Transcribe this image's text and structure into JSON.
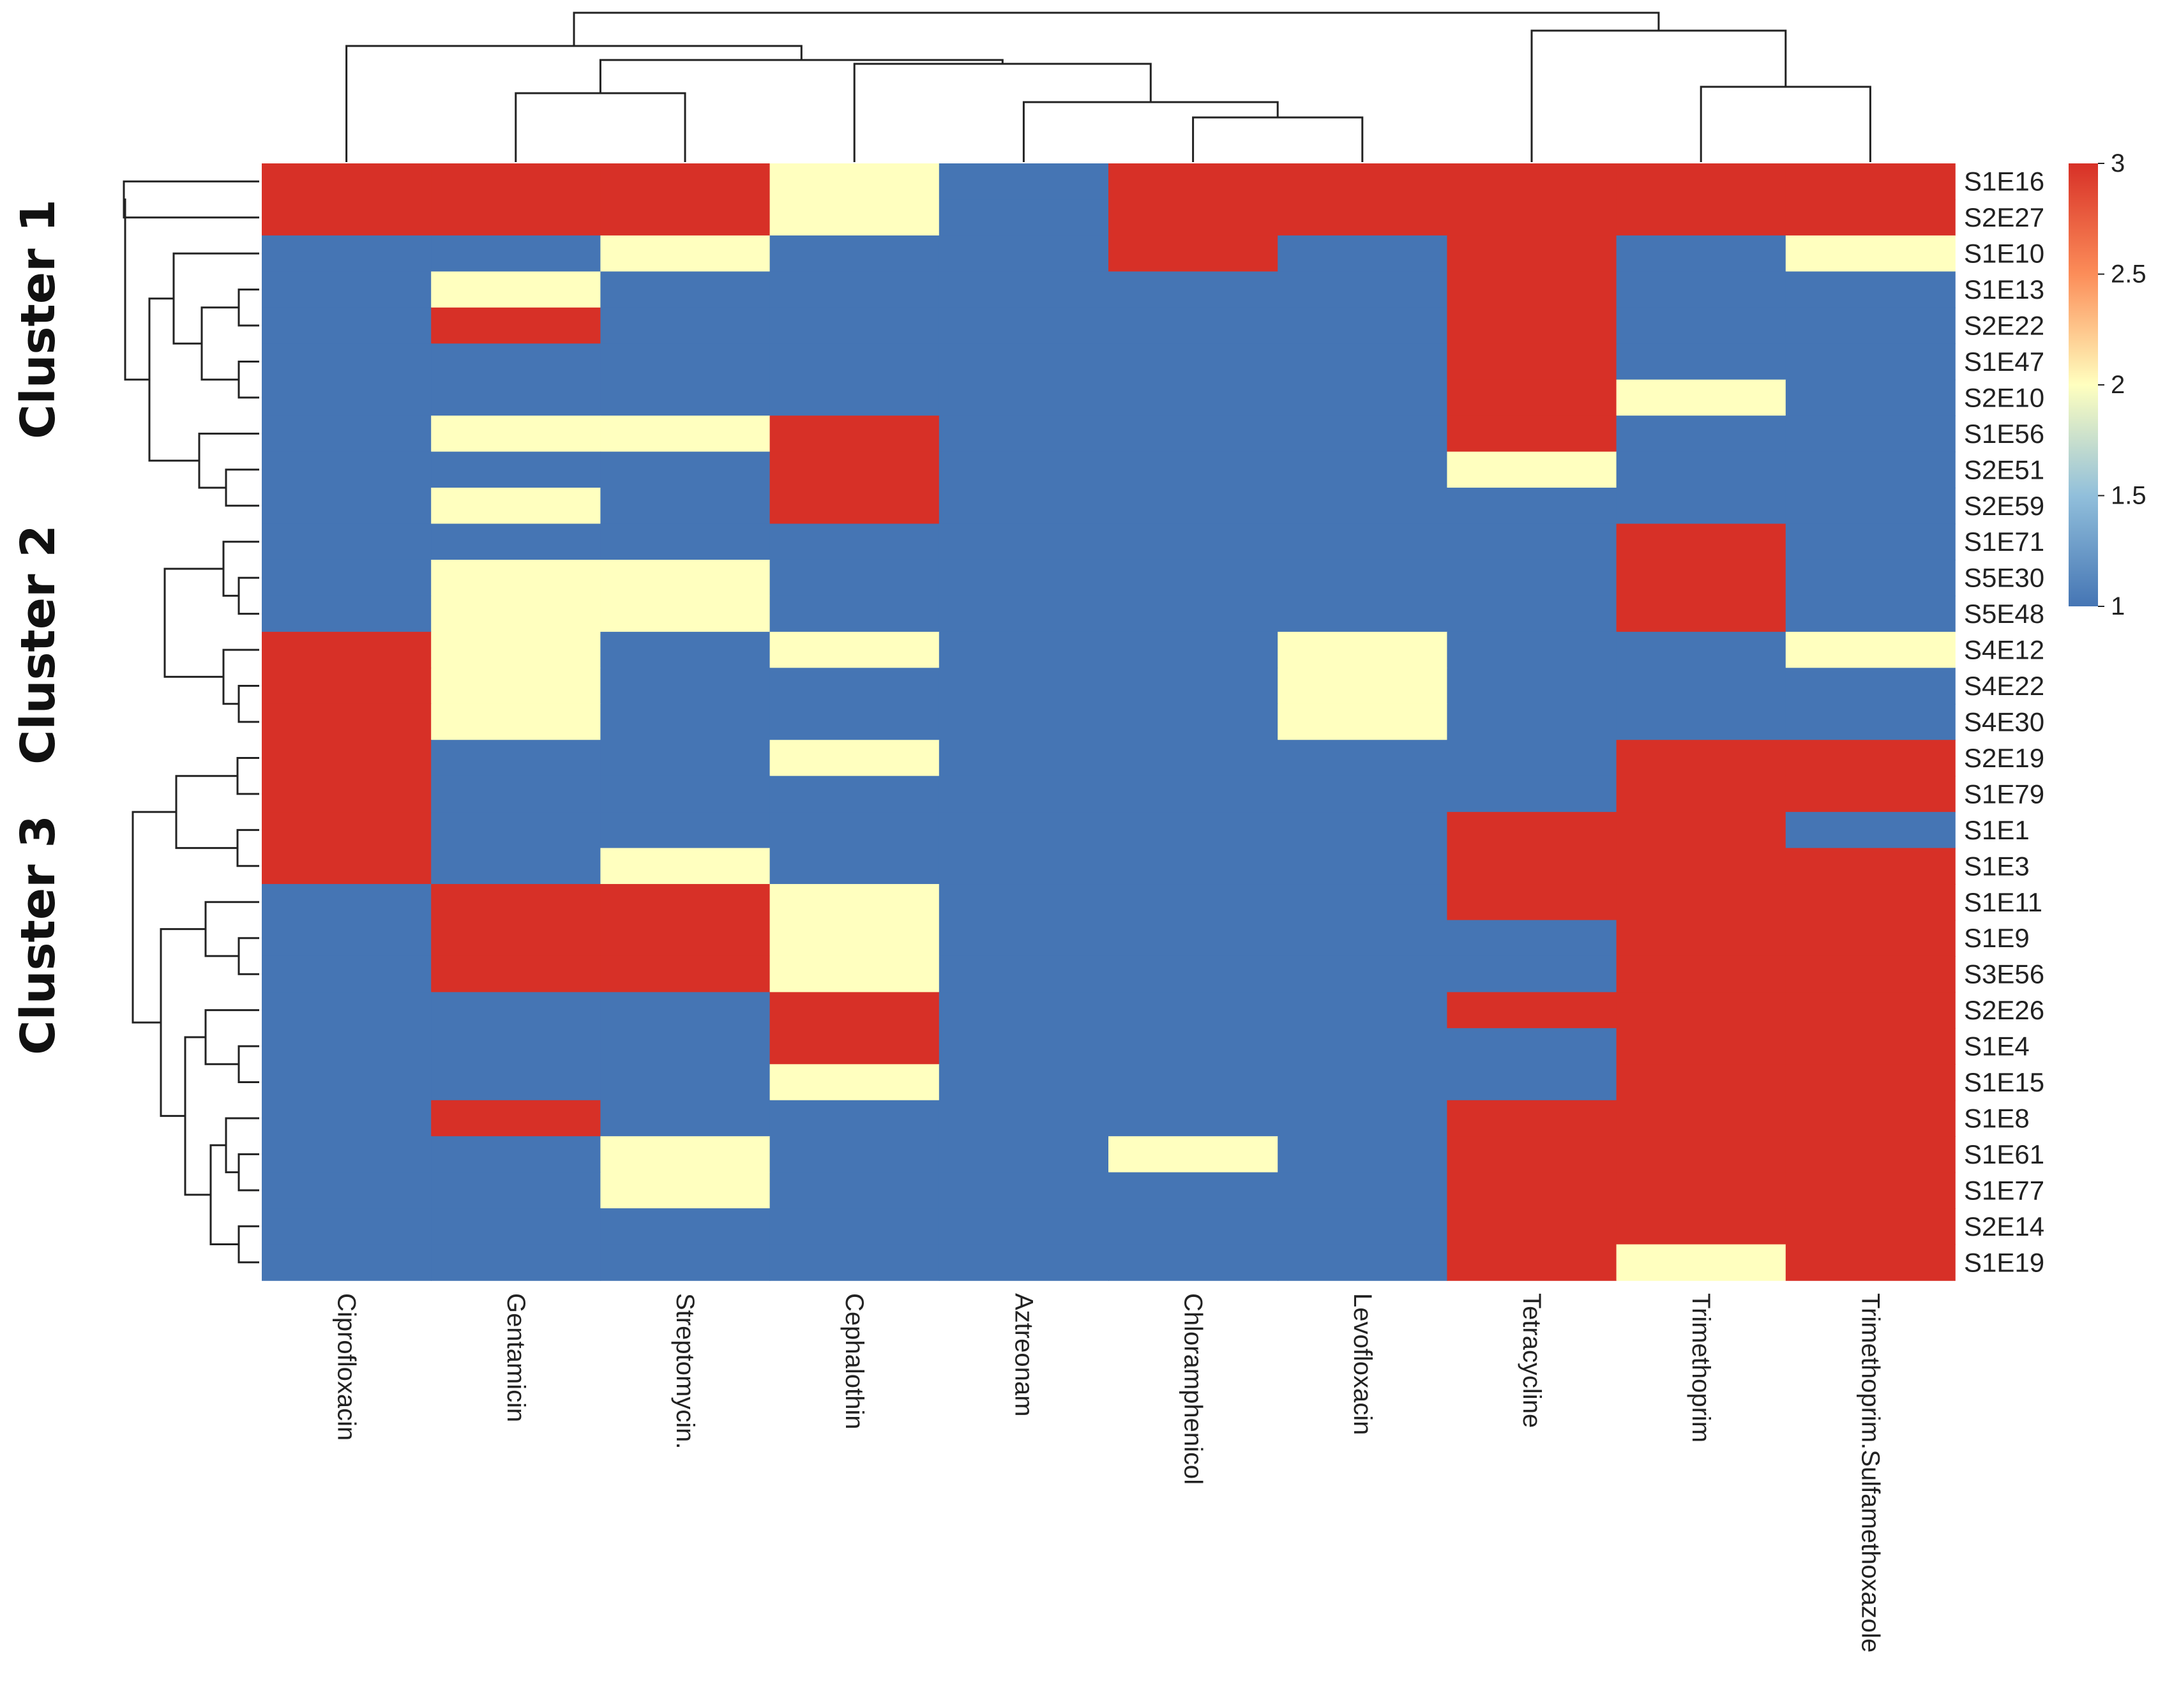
{
  "chart_data": {
    "type": "heatmap",
    "title": "",
    "columns": [
      "Ciprofloxacin",
      "Gentamicin",
      "Streptomycin.",
      "Cephalothin",
      "Aztreonam",
      "Chloramphenicol",
      "Levofloxacin",
      "Tetracycline",
      "Trimethoprim",
      "Trimethoprim.Sulfamethoxazole"
    ],
    "rows": [
      "S1E16",
      "S2E27",
      "S1E10",
      "S1E13",
      "S2E22",
      "S1E47",
      "S2E10",
      "S1E56",
      "S2E51",
      "S2E59",
      "S1E71",
      "S5E30",
      "S5E48",
      "S4E12",
      "S4E22",
      "S4E30",
      "S2E19",
      "S1E79",
      "S1E1",
      "S1E3",
      "S1E11",
      "S1E9",
      "S3E56",
      "S2E26",
      "S1E4",
      "S1E15",
      "S1E8",
      "S1E61",
      "S1E77",
      "S2E14",
      "S1E19"
    ],
    "values": [
      [
        3,
        3,
        3,
        2,
        1,
        3,
        3,
        3,
        3,
        3
      ],
      [
        3,
        3,
        3,
        2,
        1,
        3,
        3,
        3,
        3,
        3
      ],
      [
        1,
        1,
        2,
        1,
        1,
        3,
        1,
        3,
        1,
        2
      ],
      [
        1,
        2,
        1,
        1,
        1,
        1,
        1,
        3,
        1,
        1
      ],
      [
        1,
        3,
        1,
        1,
        1,
        1,
        1,
        3,
        1,
        1
      ],
      [
        1,
        1,
        1,
        1,
        1,
        1,
        1,
        3,
        1,
        1
      ],
      [
        1,
        1,
        1,
        1,
        1,
        1,
        1,
        3,
        2,
        1
      ],
      [
        1,
        2,
        2,
        3,
        1,
        1,
        1,
        3,
        1,
        1
      ],
      [
        1,
        1,
        1,
        3,
        1,
        1,
        1,
        2,
        1,
        1
      ],
      [
        1,
        2,
        1,
        3,
        1,
        1,
        1,
        1,
        1,
        1
      ],
      [
        1,
        1,
        1,
        1,
        1,
        1,
        1,
        1,
        3,
        1
      ],
      [
        1,
        2,
        2,
        1,
        1,
        1,
        1,
        1,
        3,
        1
      ],
      [
        1,
        2,
        2,
        1,
        1,
        1,
        1,
        1,
        3,
        1
      ],
      [
        3,
        2,
        1,
        2,
        1,
        1,
        2,
        1,
        1,
        2
      ],
      [
        3,
        2,
        1,
        1,
        1,
        1,
        2,
        1,
        1,
        1
      ],
      [
        3,
        2,
        1,
        1,
        1,
        1,
        2,
        1,
        1,
        1
      ],
      [
        3,
        1,
        1,
        2,
        1,
        1,
        1,
        1,
        3,
        3
      ],
      [
        3,
        1,
        1,
        1,
        1,
        1,
        1,
        1,
        3,
        3
      ],
      [
        3,
        1,
        1,
        1,
        1,
        1,
        1,
        3,
        3,
        1
      ],
      [
        3,
        1,
        2,
        1,
        1,
        1,
        1,
        3,
        3,
        3
      ],
      [
        1,
        3,
        3,
        2,
        1,
        1,
        1,
        3,
        3,
        3
      ],
      [
        1,
        3,
        3,
        2,
        1,
        1,
        1,
        1,
        3,
        3
      ],
      [
        1,
        3,
        3,
        2,
        1,
        1,
        1,
        1,
        3,
        3
      ],
      [
        1,
        1,
        1,
        3,
        1,
        1,
        1,
        3,
        3,
        3
      ],
      [
        1,
        1,
        1,
        3,
        1,
        1,
        1,
        1,
        3,
        3
      ],
      [
        1,
        1,
        1,
        2,
        1,
        1,
        1,
        1,
        3,
        3
      ],
      [
        1,
        3,
        1,
        1,
        1,
        1,
        1,
        3,
        3,
        3
      ],
      [
        1,
        1,
        2,
        1,
        1,
        2,
        1,
        3,
        3,
        3
      ],
      [
        1,
        1,
        2,
        1,
        1,
        1,
        1,
        3,
        3,
        3
      ],
      [
        1,
        1,
        1,
        1,
        1,
        1,
        1,
        3,
        3,
        3
      ],
      [
        1,
        1,
        1,
        1,
        1,
        1,
        1,
        3,
        2,
        3
      ]
    ],
    "clusters": [
      "Cluster 1",
      "Cluster 2",
      "Cluster 3"
    ],
    "legend": {
      "ticks": [
        "3",
        "2.5",
        "2",
        "1.5",
        "1"
      ],
      "range": [
        1,
        3
      ]
    },
    "colors": {
      "low": "#4575b4",
      "mid": "#ffffbf",
      "high": "#d73027"
    }
  }
}
